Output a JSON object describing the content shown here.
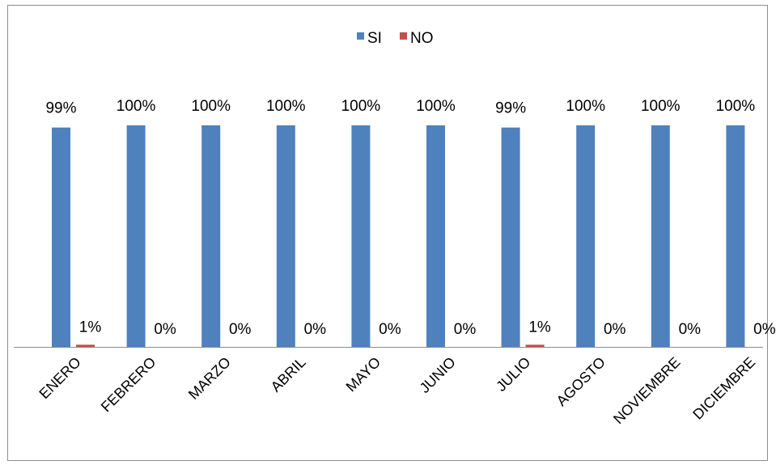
{
  "chart_data": {
    "type": "bar",
    "categories": [
      "ENERO",
      "FEBRERO",
      "MARZO",
      "ABRIL",
      "MAYO",
      "JUNIO",
      "JULIO",
      "AGOSTO",
      "NOVIEMBRE",
      "DICIEMBRE"
    ],
    "series": [
      {
        "name": "SI",
        "color": "#4F81BD",
        "values": [
          99,
          100,
          100,
          100,
          100,
          100,
          99,
          100,
          100,
          100
        ],
        "labels": [
          "99%",
          "100%",
          "100%",
          "100%",
          "100%",
          "100%",
          "99%",
          "100%",
          "100%",
          "100%"
        ]
      },
      {
        "name": "NO",
        "color": "#C0504D",
        "values": [
          1,
          0,
          0,
          0,
          0,
          0,
          1,
          0,
          0,
          0
        ],
        "labels": [
          "1%",
          "0%",
          "0%",
          "0%",
          "0%",
          "0%",
          "1%",
          "0%",
          "0%",
          "0%"
        ]
      }
    ],
    "ylim": [
      0,
      100
    ],
    "grid": false,
    "legend": "top-center"
  }
}
